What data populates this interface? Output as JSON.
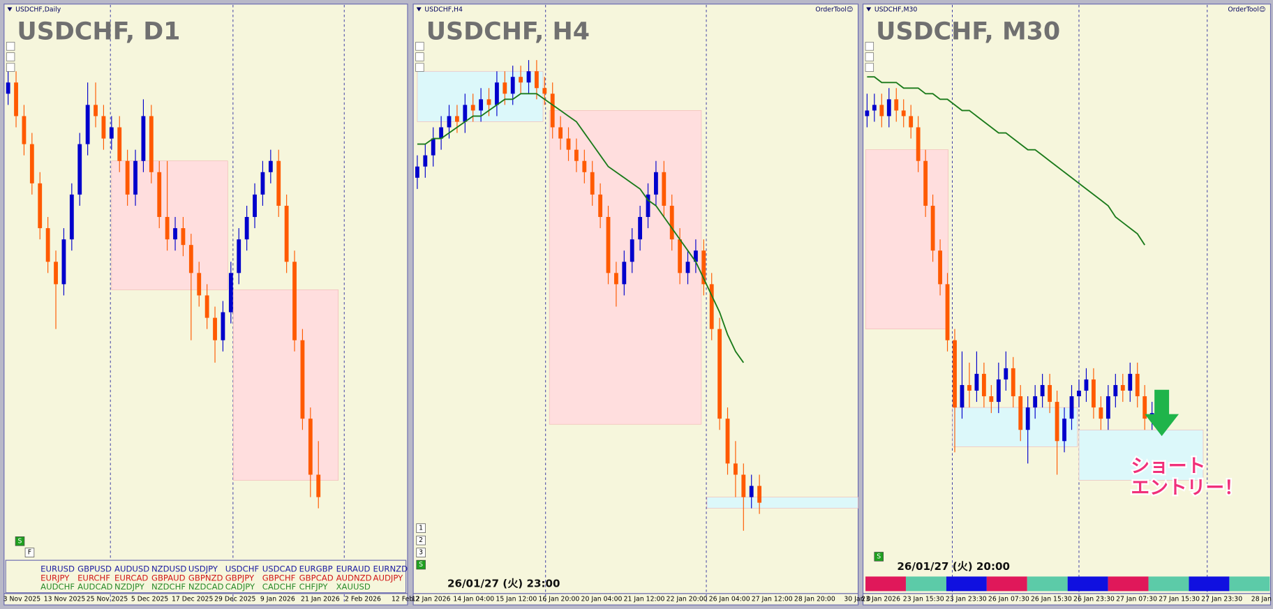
{
  "panels": [
    {
      "header": "USDCHF,Daily",
      "title": "USDCHF, D1",
      "candles": [
        [
          84,
          88,
          82,
          86
        ],
        [
          86,
          88,
          78,
          80
        ],
        [
          80,
          82,
          73,
          75
        ],
        [
          75,
          77,
          66,
          68
        ],
        [
          68,
          70,
          58,
          60
        ],
        [
          60,
          62,
          52,
          54
        ],
        [
          54,
          56,
          42,
          50
        ],
        [
          50,
          60,
          48,
          58
        ],
        [
          58,
          68,
          56,
          66
        ],
        [
          66,
          77,
          64,
          75
        ],
        [
          75,
          86,
          73,
          82
        ],
        [
          82,
          86,
          78,
          80
        ],
        [
          80,
          82,
          74,
          76
        ],
        [
          76,
          80,
          74,
          78
        ],
        [
          78,
          80,
          70,
          72
        ],
        [
          72,
          74,
          64,
          66
        ],
        [
          66,
          74,
          64,
          72
        ],
        [
          72,
          83,
          70,
          80
        ],
        [
          80,
          82,
          68,
          70
        ],
        [
          70,
          72,
          60,
          62
        ],
        [
          62,
          72,
          56,
          58
        ],
        [
          58,
          62,
          56,
          60
        ],
        [
          60,
          62,
          55,
          57
        ],
        [
          57,
          59,
          40,
          52
        ],
        [
          52,
          54,
          46,
          48
        ],
        [
          48,
          50,
          42,
          44
        ],
        [
          44,
          46,
          36,
          40
        ],
        [
          40,
          47,
          38,
          45
        ],
        [
          45,
          54,
          43,
          52
        ],
        [
          52,
          60,
          50,
          58
        ],
        [
          58,
          64,
          56,
          62
        ],
        [
          62,
          68,
          60,
          66
        ],
        [
          66,
          72,
          64,
          70
        ],
        [
          70,
          74,
          68,
          72
        ],
        [
          72,
          74,
          62,
          64
        ],
        [
          64,
          66,
          52,
          54
        ],
        [
          54,
          56,
          38,
          40
        ],
        [
          40,
          42,
          24,
          26
        ],
        [
          26,
          28,
          12,
          16
        ],
        [
          16,
          22,
          10,
          12
        ]
      ],
      "zones": [
        {
          "from": 13,
          "to": 27.6,
          "top": 72,
          "bottom": 49,
          "color": "#ffdede"
        },
        {
          "from": 28.3,
          "to": 41.5,
          "top": 49,
          "bottom": 15,
          "color": "#ffdede"
        }
      ],
      "dates": [
        "3 Nov 2025",
        "13 Nov 2025",
        "25 Nov 2025",
        "5 Dec 2025",
        "17 Dec 2025",
        "29 Dec 2025",
        "9 Jan 2026",
        "21 Jan 2026",
        "2 Feb 2026",
        "12 Feb 2"
      ],
      "pairs": [
        [
          "EURUSD",
          "GBPUSD",
          "AUDUSD",
          "NZDUSD",
          "USDJPY",
          "USDCHF",
          "USDCAD",
          "EURGBP",
          "EURAUD",
          "EURNZD"
        ],
        [
          "EURJPY",
          "EURCHF",
          "EURCAD",
          "GBPAUD",
          "GBPNZD",
          "GBPJPY",
          "GBPCHF",
          "GBPCAD",
          "AUDNZD",
          "AUDJPY"
        ],
        [
          "AUDCHF",
          "AUDCAD",
          "NZDJPY",
          "NZDCHF",
          "NZDCAD",
          "CADJPY",
          "CADCHF",
          "CHFJPY",
          "XAUUSD"
        ]
      ],
      "buttons": [
        "S",
        "F"
      ]
    },
    {
      "header": "USDCHF,H4",
      "title": "USDCHF, H4",
      "tool": "OrderTool😊",
      "candles": [
        [
          69,
          73,
          67,
          71
        ],
        [
          71,
          75,
          69,
          73
        ],
        [
          73,
          78,
          71,
          76
        ],
        [
          76,
          80,
          74,
          78
        ],
        [
          78,
          82,
          76,
          80
        ],
        [
          80,
          82,
          77,
          79
        ],
        [
          79,
          84,
          77,
          82
        ],
        [
          82,
          84,
          79,
          81
        ],
        [
          81,
          85,
          79,
          83
        ],
        [
          83,
          85,
          80,
          82
        ],
        [
          82,
          88,
          80,
          86
        ],
        [
          86,
          88,
          82,
          84
        ],
        [
          84,
          89,
          82,
          87
        ],
        [
          87,
          89,
          84,
          86
        ],
        [
          86,
          90,
          84,
          88
        ],
        [
          88,
          90,
          83,
          85
        ],
        [
          85,
          87,
          82,
          84
        ],
        [
          84,
          86,
          76,
          78
        ],
        [
          78,
          80,
          74,
          76
        ],
        [
          76,
          78,
          72,
          74
        ],
        [
          74,
          76,
          70,
          72
        ],
        [
          72,
          74,
          68,
          70
        ],
        [
          70,
          72,
          64,
          66
        ],
        [
          66,
          68,
          60,
          62
        ],
        [
          62,
          64,
          50,
          52
        ],
        [
          52,
          54,
          46,
          50
        ],
        [
          50,
          56,
          48,
          54
        ],
        [
          54,
          60,
          52,
          58
        ],
        [
          58,
          64,
          56,
          62
        ],
        [
          62,
          68,
          60,
          66
        ],
        [
          66,
          72,
          64,
          70
        ],
        [
          70,
          72,
          62,
          64
        ],
        [
          64,
          66,
          56,
          58
        ],
        [
          58,
          60,
          50,
          52
        ],
        [
          52,
          56,
          50,
          54
        ],
        [
          54,
          58,
          52,
          56
        ],
        [
          56,
          58,
          48,
          50
        ],
        [
          50,
          52,
          40,
          42
        ],
        [
          42,
          44,
          24,
          26
        ],
        [
          26,
          28,
          16,
          18
        ],
        [
          18,
          22,
          12,
          16
        ],
        [
          16,
          18,
          6,
          12
        ],
        [
          12,
          16,
          10,
          14
        ],
        [
          14,
          16,
          9,
          11
        ]
      ],
      "ma": [
        75,
        75,
        76,
        76,
        77,
        78,
        79,
        80,
        80,
        81,
        82,
        83,
        83,
        84,
        84,
        84,
        83,
        82,
        81,
        80,
        79,
        77,
        75,
        73,
        71,
        70,
        69,
        68,
        67,
        65,
        64,
        62,
        60,
        58,
        56,
        54,
        51,
        48,
        45,
        41,
        38,
        36,
        null,
        null
      ],
      "zones": [
        {
          "from": 0,
          "to": 15.8,
          "top": 88,
          "bottom": 79,
          "color": "#dcf8fa"
        },
        {
          "from": 16.6,
          "to": 35.7,
          "top": 81,
          "bottom": 25,
          "color": "#ffdede"
        },
        {
          "from": 36.4,
          "to": 55.4,
          "top": 12,
          "bottom": 10,
          "color": "#dcf8fa"
        }
      ],
      "dates": [
        "12 Jan 2026",
        "14 Jan 04:00",
        "15 Jan 12:00",
        "16 Jan 20:00",
        "20 Jan 04:00",
        "21 Jan 12:00",
        "22 Jan 20:00",
        "26 Jan 04:00",
        "27 Jan 12:00",
        "28 Jan 20:00",
        "30 Jan 0"
      ],
      "timestamp": "26/01/27 (火) 23:00",
      "buttons": [
        "1",
        "2",
        "3",
        "S"
      ]
    },
    {
      "header": "USDCHF,M30",
      "title": "USDCHF, M30",
      "tool": "OrderTool😊",
      "candles": [
        [
          80,
          84,
          78,
          81
        ],
        [
          81,
          84,
          79,
          82
        ],
        [
          82,
          84,
          78,
          80
        ],
        [
          80,
          85,
          78,
          83
        ],
        [
          83,
          85,
          79,
          81
        ],
        [
          81,
          83,
          78,
          80
        ],
        [
          80,
          82,
          76,
          78
        ],
        [
          78,
          80,
          70,
          72
        ],
        [
          72,
          74,
          62,
          64
        ],
        [
          64,
          66,
          54,
          56
        ],
        [
          56,
          58,
          48,
          50
        ],
        [
          50,
          52,
          38,
          40
        ],
        [
          40,
          42,
          20,
          28
        ],
        [
          28,
          38,
          26,
          32
        ],
        [
          32,
          36,
          28,
          31
        ],
        [
          31,
          38,
          29,
          34
        ],
        [
          34,
          36,
          28,
          30
        ],
        [
          30,
          32,
          27,
          29
        ],
        [
          29,
          36,
          27,
          33
        ],
        [
          33,
          38,
          31,
          35
        ],
        [
          35,
          37,
          28,
          30
        ],
        [
          30,
          32,
          22,
          24
        ],
        [
          24,
          30,
          18,
          28
        ],
        [
          28,
          32,
          26,
          30
        ],
        [
          30,
          34,
          28,
          32
        ],
        [
          32,
          34,
          27,
          29
        ],
        [
          29,
          31,
          16,
          22
        ],
        [
          22,
          28,
          20,
          26
        ],
        [
          26,
          32,
          24,
          30
        ],
        [
          30,
          33,
          28,
          31
        ],
        [
          31,
          35,
          29,
          33
        ],
        [
          33,
          35,
          26,
          28
        ],
        [
          28,
          30,
          24,
          26
        ],
        [
          26,
          32,
          24,
          30
        ],
        [
          30,
          34,
          28,
          32
        ],
        [
          32,
          34,
          29,
          31
        ],
        [
          31,
          36,
          29,
          34
        ],
        [
          34,
          36,
          28,
          30
        ],
        [
          30,
          32,
          24,
          26
        ],
        [
          26,
          29,
          24,
          27
        ]
      ],
      "ma": [
        87,
        87,
        86,
        86,
        86,
        85,
        85,
        85,
        84,
        84,
        83,
        83,
        82,
        81,
        81,
        80,
        79,
        78,
        77,
        77,
        76,
        75,
        74,
        74,
        73,
        72,
        71,
        70,
        69,
        68,
        67,
        66,
        65,
        64,
        62,
        61,
        60,
        59,
        57,
        null
      ],
      "zones": [
        {
          "from": -0.2,
          "to": 11.1,
          "top": 74,
          "bottom": 42,
          "color": "#ffdede"
        },
        {
          "from": 11.7,
          "to": 28.8,
          "top": 28,
          "bottom": 21,
          "color": "#dcf8fa"
        },
        {
          "from": 29,
          "to": 46,
          "top": 24,
          "bottom": 15,
          "color": "#dcf8fa"
        }
      ],
      "dates": [
        "23 Jan 2026",
        "23 Jan 15:30",
        "23 Jan 23:30",
        "26 Jan 07:30",
        "26 Jan 15:30",
        "26 Jan 23:30",
        "27 Jan 07:30",
        "27 Jan 15:30",
        "27 Jan 23:30",
        "28 Jan 0"
      ],
      "timestamp": "26/01/27 (火) 20:00",
      "buttons": [
        "S"
      ],
      "annotation": [
        "ショート",
        "エントリー！"
      ]
    }
  ],
  "style": {
    "up_color": "#0000cc",
    "down_color": "#ff5a00",
    "ma_color": "#1a7a1a",
    "ylim": [
      0,
      100
    ]
  }
}
